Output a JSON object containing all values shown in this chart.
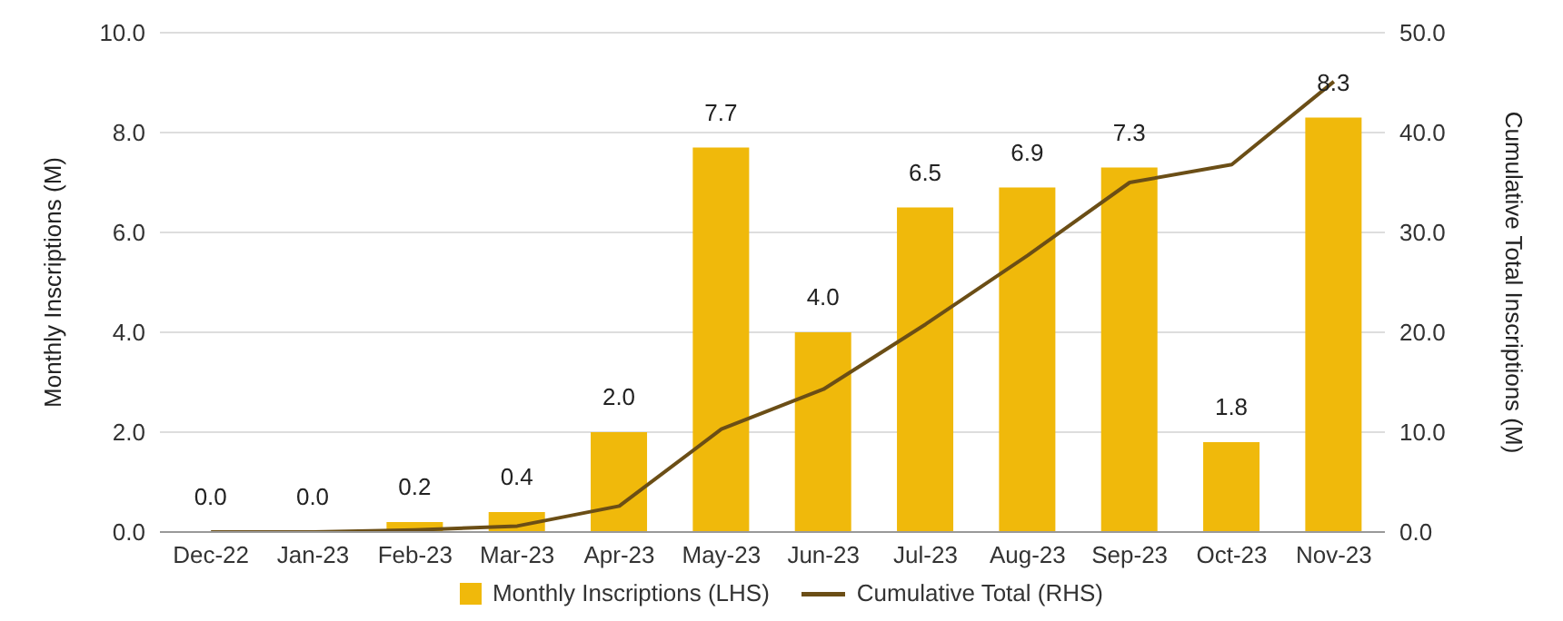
{
  "chart_data": {
    "type": "bar",
    "categories": [
      "Dec-22",
      "Jan-23",
      "Feb-23",
      "Mar-23",
      "Apr-23",
      "May-23",
      "Jun-23",
      "Jul-23",
      "Aug-23",
      "Sep-23",
      "Oct-23",
      "Nov-23"
    ],
    "ylabel": "Monthly Inscriptions (M)",
    "y2label": "Cumulative Total Inscriptions (M)",
    "series": [
      {
        "name": "Monthly Inscriptions (LHS)",
        "type": "bar",
        "color": "#f0b90b",
        "values": [
          0,
          0,
          0.2,
          0.4,
          2.0,
          7.7,
          4.0,
          6.5,
          6.9,
          7.3,
          1.8,
          8.3
        ],
        "value_labels": [
          "0.0",
          "0.0",
          "0.2",
          "0.4",
          "2.0",
          "7.7",
          "4.0",
          "6.5",
          "6.9",
          "7.3",
          "1.8",
          "8.3"
        ]
      },
      {
        "name": "Cumulative Total (RHS)",
        "type": "line",
        "axis": "y2",
        "color": "#6b4e16",
        "values": [
          0,
          0,
          0.2,
          0.6,
          2.6,
          10.3,
          14.3,
          20.8,
          27.7,
          35.0,
          36.8,
          45.1
        ]
      }
    ],
    "ylim": [
      0,
      10
    ],
    "yticks": [
      {
        "value": 0,
        "label": "0.0"
      },
      {
        "value": 2,
        "label": "2.0"
      },
      {
        "value": 4,
        "label": "4.0"
      },
      {
        "value": 6,
        "label": "6.0"
      },
      {
        "value": 8,
        "label": "8.0"
      },
      {
        "value": 10,
        "label": "10.0"
      }
    ],
    "y2lim": [
      0,
      50
    ],
    "y2ticks": [
      {
        "value": 0,
        "label": "0.0"
      },
      {
        "value": 10,
        "label": "10.0"
      },
      {
        "value": 20,
        "label": "20.0"
      },
      {
        "value": 30,
        "label": "30.0"
      },
      {
        "value": 40,
        "label": "40.0"
      },
      {
        "value": 50,
        "label": "50.0"
      }
    ],
    "grid": "y",
    "legend": "bottom"
  }
}
